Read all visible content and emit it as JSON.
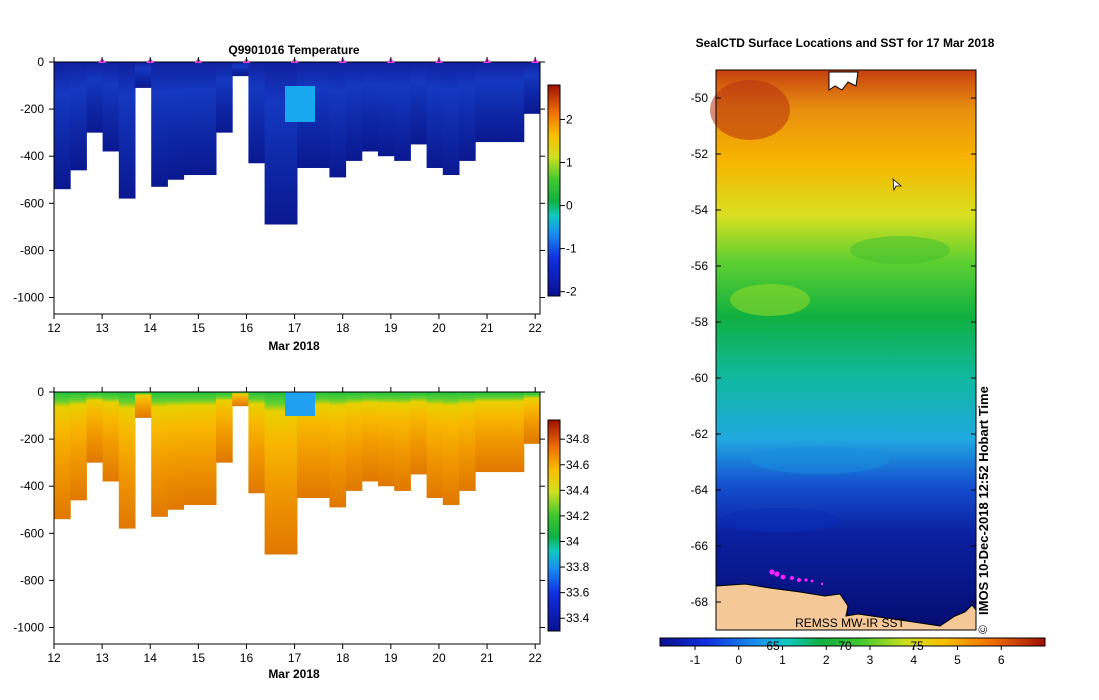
{
  "chart_data": [
    {
      "type": "heatmap",
      "title": "Q9901016  Temperature",
      "xlabel": "Mar 2018",
      "ylabel": "",
      "x_ticks": [
        "12",
        "13",
        "14",
        "15",
        "16",
        "17",
        "18",
        "19",
        "20",
        "21",
        "22"
      ],
      "xlim": [
        12,
        22.1
      ],
      "y_ticks": [
        "0",
        "-200",
        "-400",
        "-600",
        "-800",
        "-1000"
      ],
      "ylim": [
        -1070,
        0
      ],
      "colorbar": {
        "ticks": [
          "2",
          "1",
          "0",
          "-1",
          "-2"
        ],
        "range": [
          -2.1,
          2.8
        ]
      },
      "profile_markers_day": [
        13,
        14,
        15,
        16,
        17,
        18,
        19,
        20,
        21,
        22
      ],
      "profile_max_depth": [
        -540,
        -460,
        -300,
        -380,
        -580,
        -110,
        -530,
        -500,
        -480,
        -480,
        -300,
        -60,
        -430,
        -690,
        -690,
        -450,
        -450,
        -490,
        -420,
        -380,
        -400,
        -420,
        -350,
        -450,
        -480,
        -420,
        -340,
        -340,
        -340,
        -220
      ]
    },
    {
      "type": "heatmap",
      "title": "",
      "xlabel": "Mar 2018",
      "ylabel": "",
      "x_ticks": [
        "12",
        "13",
        "14",
        "15",
        "16",
        "17",
        "18",
        "19",
        "20",
        "21",
        "22"
      ],
      "xlim": [
        12,
        22.1
      ],
      "y_ticks": [
        "0",
        "-200",
        "-400",
        "-600",
        "-800",
        "-1000"
      ],
      "ylim": [
        -1070,
        0
      ],
      "colorbar": {
        "ticks": [
          "34.8",
          "34.6",
          "34.4",
          "34.2",
          "34",
          "33.8",
          "33.6",
          "33.4"
        ],
        "range": [
          33.3,
          34.95
        ]
      }
    },
    {
      "type": "heatmap",
      "title": "SealCTD Surface Locations and SST for 17 Mar 2018",
      "y_ticks": [
        "-50",
        "-52",
        "-54",
        "-56",
        "-58",
        "-60",
        "-62",
        "-64",
        "-66",
        "-68"
      ],
      "ylim": [
        -69,
        -49
      ],
      "colorbar": {
        "ticks": [
          "-1",
          "0",
          "1",
          "2",
          "3",
          "4",
          "5",
          "6"
        ],
        "range": [
          -1.8,
          7
        ]
      },
      "colorbar_secondary_ticks": [
        "65",
        "70",
        "75"
      ],
      "credit_text": "REMSS MW-IR SST",
      "side_text": "IMOS 10-Dec-2018 12:52 Hobart Time",
      "copyright": "©"
    }
  ]
}
